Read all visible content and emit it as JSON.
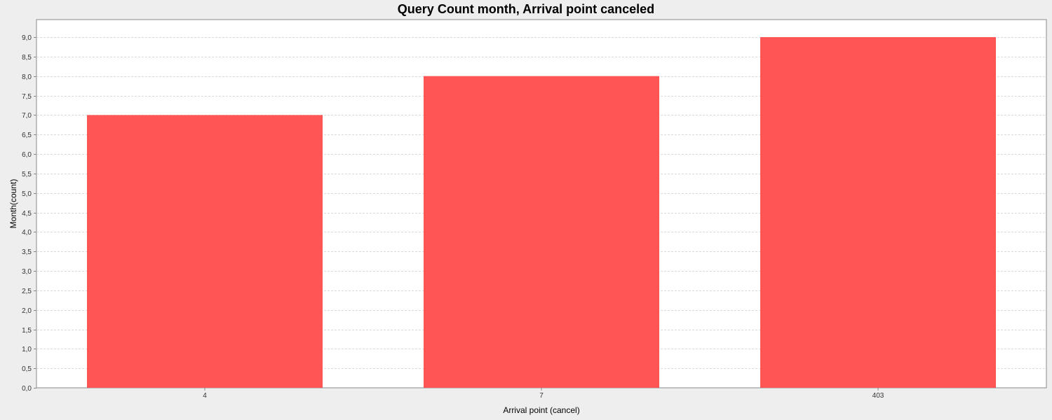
{
  "chart_data": {
    "type": "bar",
    "title": "Query Count month, Arrival point canceled",
    "xlabel": "Arrival point (cancel)",
    "ylabel": "Month(count)",
    "categories": [
      "4",
      "7",
      "403"
    ],
    "values": [
      7,
      8,
      9
    ],
    "ylim": [
      0,
      9.45
    ],
    "ytick_step": 0.5,
    "ytick_decimal_separator": ",",
    "grid": true,
    "legend": "none",
    "colors": {
      "bar": "#ff5555",
      "plot_background": "#ffffff",
      "page_background": "#eeeeee",
      "grid": "#d9d9d9",
      "axis": "#888888"
    }
  }
}
